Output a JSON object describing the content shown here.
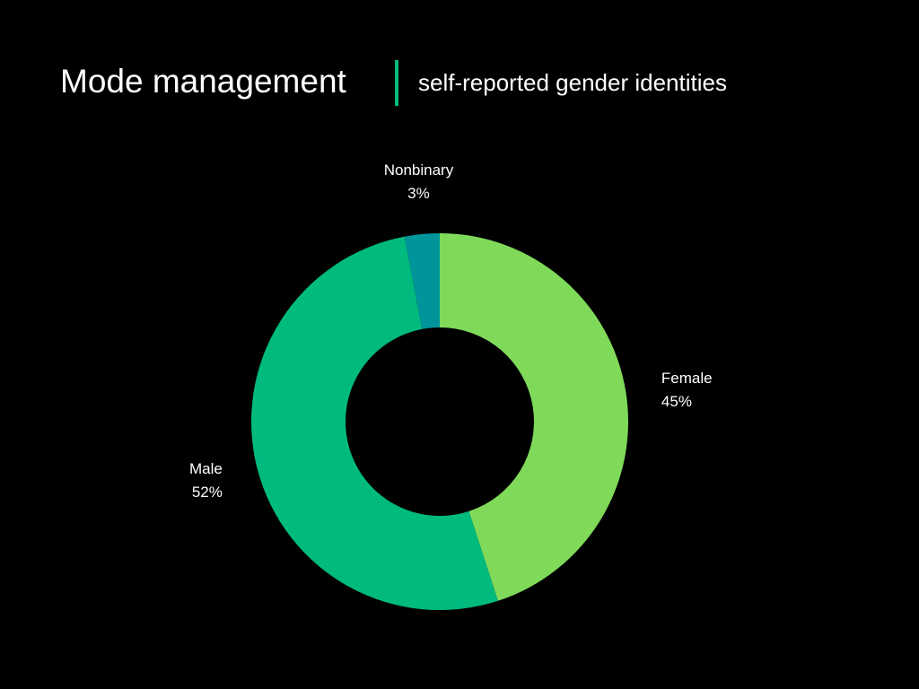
{
  "header": {
    "title": "Mode management",
    "subtitle": "self-reported gender identities",
    "divider_color": "#00BA7E"
  },
  "chart_data": {
    "type": "pie",
    "variant": "donut",
    "title": "",
    "slices": [
      {
        "label": "Female",
        "value": 45,
        "display": "45%",
        "color": "#80DA5A"
      },
      {
        "label": "Male",
        "value": 52,
        "display": "52%",
        "color": "#00BA7E"
      },
      {
        "label": "Nonbinary",
        "value": 3,
        "display": "3%",
        "color": "#00959B"
      }
    ],
    "start_angle": "12 o'clock",
    "direction": "clockwise",
    "legend": "none (labels beside slices)"
  }
}
